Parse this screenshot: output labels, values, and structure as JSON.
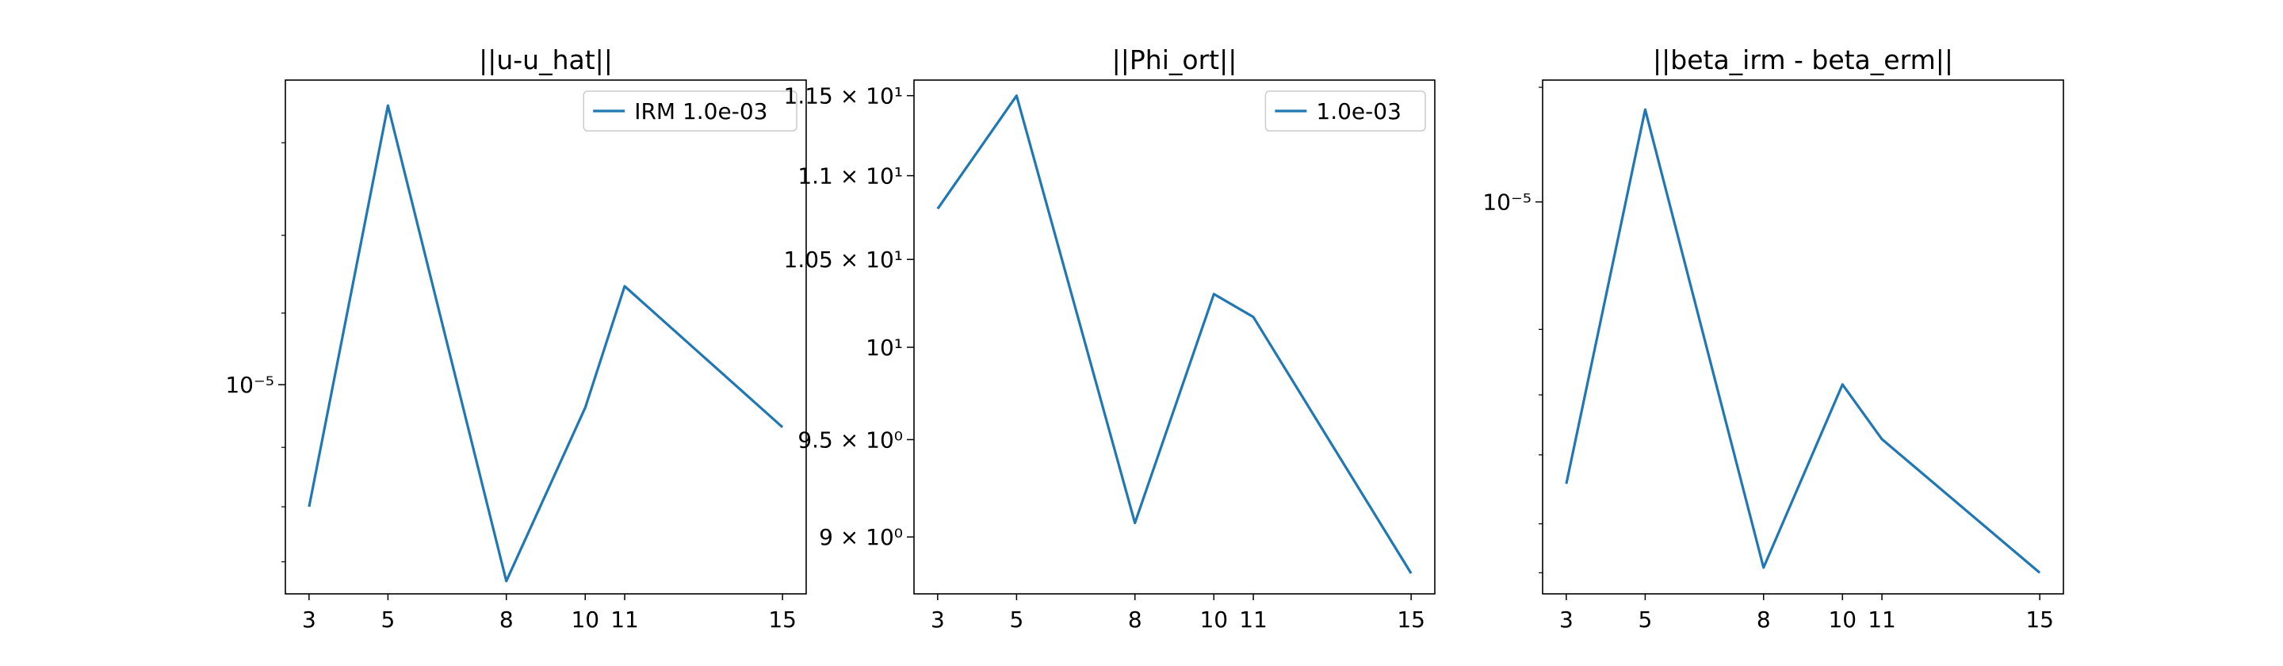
{
  "chart_data": [
    {
      "type": "line",
      "title": "||u-u_hat||",
      "xlabel": "",
      "ylabel": "",
      "yscale": "log",
      "x": [
        3,
        5,
        8,
        10,
        11,
        15
      ],
      "x_ticks": [
        "3",
        "5",
        "8",
        "10",
        "11",
        "15"
      ],
      "y_tick_labels": [
        {
          "value": 1e-05,
          "label": "10⁻⁵"
        }
      ],
      "ylim": [
        7.57e-06,
        1.5e-05
      ],
      "y_minor_ticks": [
        7.9e-06,
        8.5e-06,
        9.2e-06,
        1.1e-05,
        1.22e-05,
        1.38e-05
      ],
      "series": [
        {
          "name": "IRM 1.0e-03",
          "color": "#1f77b4",
          "values": [
            8.5e-06,
            1.45e-05,
            7.7e-06,
            9.7e-06,
            1.14e-05,
            9.45e-06
          ]
        }
      ],
      "legend": "upper right",
      "grid": false
    },
    {
      "type": "line",
      "title": "||Phi_ort||",
      "xlabel": "",
      "ylabel": "",
      "yscale": "log",
      "x": [
        3,
        5,
        8,
        10,
        11,
        15
      ],
      "x_ticks": [
        "3",
        "5",
        "8",
        "10",
        "11",
        "15"
      ],
      "y_tick_labels": [
        {
          "value": 9.0,
          "label": "9 × 10⁰"
        },
        {
          "value": 9.5,
          "label": "9.5 × 10⁰"
        },
        {
          "value": 10.0,
          "label": "10¹"
        },
        {
          "value": 10.5,
          "label": "1.05 × 10¹"
        },
        {
          "value": 11.0,
          "label": "1.1 × 10¹"
        },
        {
          "value": 11.5,
          "label": "1.15 × 10¹"
        }
      ],
      "ylim": [
        8.72,
        11.6
      ],
      "y_minor_ticks": [],
      "series": [
        {
          "name": "1.0e-03",
          "color": "#1f77b4",
          "values": [
            10.8,
            11.5,
            9.07,
            10.3,
            10.17,
            8.82
          ]
        }
      ],
      "legend": "upper right",
      "grid": false
    },
    {
      "type": "line",
      "title": "||beta_irm - beta_erm||",
      "xlabel": "",
      "ylabel": "",
      "yscale": "log",
      "x": [
        3,
        5,
        8,
        10,
        11,
        15
      ],
      "x_ticks": [
        "3",
        "5",
        "8",
        "10",
        "11",
        "15"
      ],
      "y_tick_labels": [
        {
          "value": 1e-05,
          "label": "10⁻⁵"
        }
      ],
      "ylim": [
        4.3e-06,
        1.3e-05
      ],
      "y_minor_ticks": [
        4.5e-06,
        5e-06,
        5.8e-06,
        6.6e-06,
        7.6e-06,
        1.28e-05
      ],
      "series": [
        {
          "name": "",
          "color": "#1f77b4",
          "values": [
            5.45e-06,
            1.22e-05,
            4.55e-06,
            6.75e-06,
            6e-06,
            4.5e-06
          ]
        }
      ],
      "legend": "",
      "grid": false
    }
  ]
}
